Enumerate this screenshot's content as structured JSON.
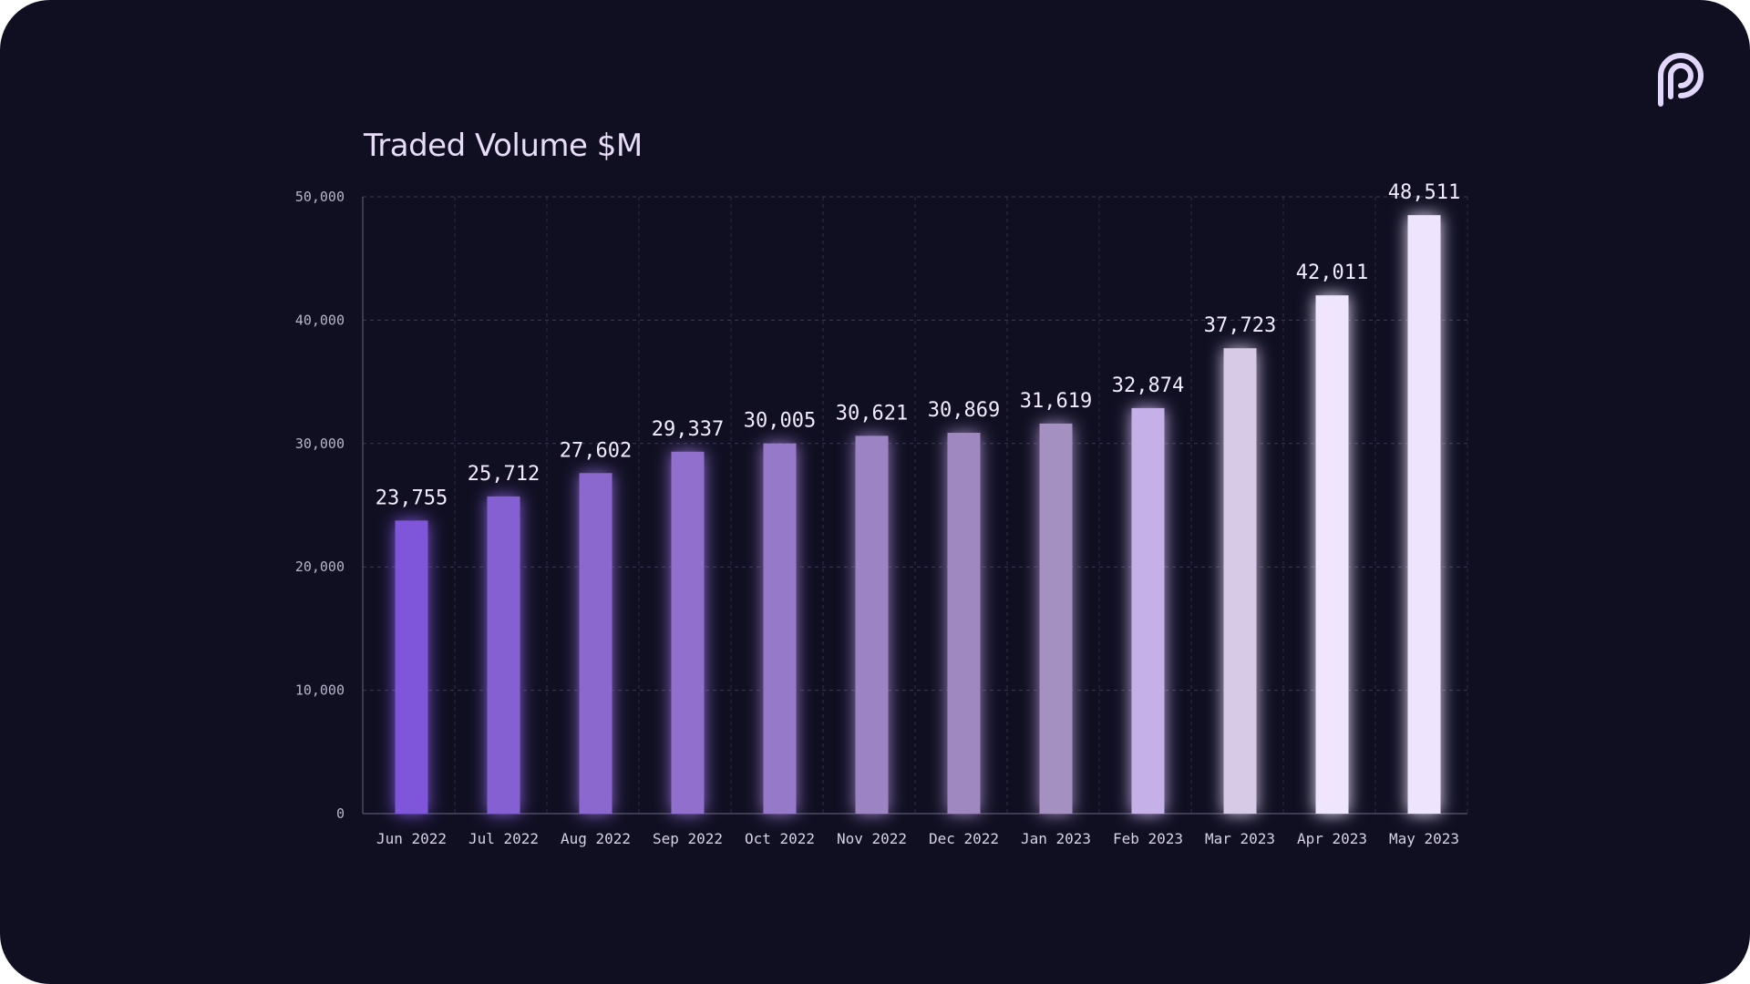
{
  "brand": {
    "logo_icon": "pyth-p-logo-icon",
    "logo_color": "#e3d6fb",
    "background": "#100f22"
  },
  "chart_data": {
    "type": "bar",
    "title": "Traded Volume $M",
    "xlabel": "",
    "ylabel": "",
    "categories": [
      "Jun 2022",
      "Jul 2022",
      "Aug 2022",
      "Sep 2022",
      "Oct 2022",
      "Nov 2022",
      "Dec 2022",
      "Jan 2023",
      "Feb 2023",
      "Mar 2023",
      "Apr 2023",
      "May 2023"
    ],
    "values": [
      23755,
      25712,
      27602,
      29337,
      30005,
      30621,
      30869,
      31619,
      32874,
      37723,
      42011,
      48511
    ],
    "value_labels": [
      "23,755",
      "25,712",
      "27,602",
      "29,337",
      "30,005",
      "30,621",
      "30,869",
      "31,619",
      "32,874",
      "37,723",
      "42,011",
      "48,511"
    ],
    "yticks": [
      0,
      10000,
      20000,
      30000,
      40000,
      50000
    ],
    "ytick_labels": [
      "0",
      "10,000",
      "20,000",
      "30,000",
      "40,000",
      "50,000"
    ],
    "ylim": [
      0,
      50000
    ],
    "grid": true,
    "legend": "none",
    "bar_colors": [
      "#7f56d9",
      "#8560d3",
      "#8a67cd",
      "#9070cc",
      "#9779c9",
      "#9c84c4",
      "#9f88c0",
      "#a491c1",
      "#c5b0e7",
      "#d6cae6",
      "#efe6fe",
      "#efe4fe"
    ]
  }
}
